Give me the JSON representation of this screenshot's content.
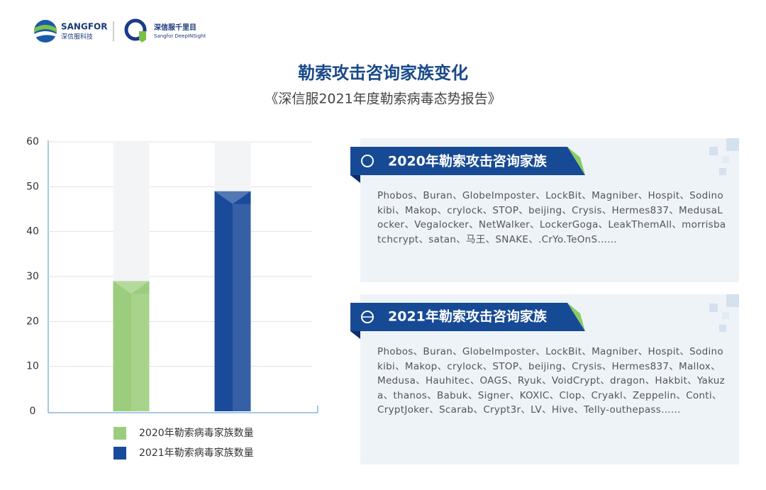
{
  "header": {
    "brand": "SANGFOR",
    "brand_cn": "深信服科技",
    "product_cn": "深信服千里目",
    "product_en": "Sangfor DeepINSight"
  },
  "chart_data": {
    "type": "bar",
    "title": "勒索攻击咨询家族变化",
    "subtitle": "《深信服2021年度勒索病毒态势报告》",
    "categories": [
      null
    ],
    "series": [
      {
        "name": "2020年勒索病毒家族数量",
        "color": "#9ccd7c",
        "values": [
          29
        ]
      },
      {
        "name": "2021年勒索病毒家族数量",
        "color": "#1a4a9a",
        "values": [
          49
        ]
      }
    ],
    "ylim": [
      0,
      60
    ],
    "yticks": [
      0,
      10,
      20,
      30,
      40,
      50,
      60
    ],
    "grid": true
  },
  "panels": [
    {
      "title": "2020年勒索攻击咨询家族",
      "text": "Phobos、Buran、GlobeImposter、LockBit、Magniber、Hospit、Sodinokibi、Makop、crylock、STOP、beijing、Crysis、Hermes837、MedusaLocker、Vegalocker、NetWalker、LockerGoga、LeakThemAll、morrisbatchcrypt、satan、马王、SNAKE、.CrYo.TeOnS……"
    },
    {
      "title": "2021年勒索攻击咨询家族",
      "text": "Phobos、Buran、GlobeImposter、LockBit、Magniber、Hospit、Sodinokibi、Makop、crylock、STOP、beijing、Crysis、Hermes837、Mallox、Medusa、Hauhitec、OAGS、Ryuk、VoidCrypt、dragon、Hakbit、Yakuza、thanos、Babuk、Signer、KOXIC、Clop、Cryakl、Zeppelin、Conti、CryptJoker、Scarab、Crypt3r、LV、Hive、Telly-outhepass……"
    }
  ]
}
